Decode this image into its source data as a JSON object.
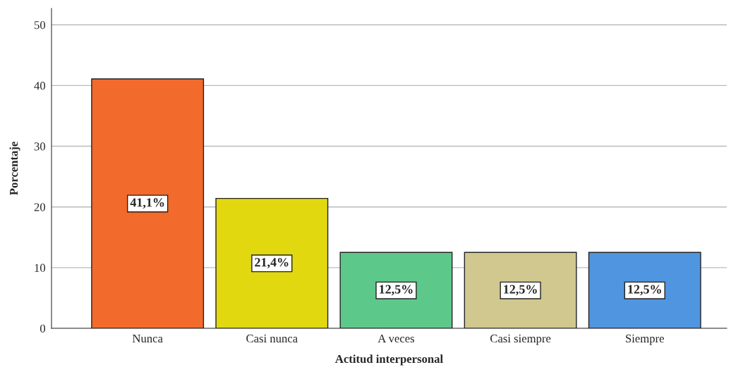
{
  "chart_data": {
    "type": "bar",
    "xlabel": "Actitud interpersonal",
    "ylabel": "Porcentaje",
    "categories": [
      "Nunca",
      "Casi nunca",
      "A veces",
      "Casi siempre",
      "Siempre"
    ],
    "values": [
      41.1,
      21.4,
      12.5,
      12.5,
      12.5
    ],
    "value_labels": [
      "41,1%",
      "21,4%",
      "12,5%",
      "12,5%",
      "12,5%"
    ],
    "colors": [
      "#f26a2c",
      "#e2d80f",
      "#5cc98a",
      "#d0c88f",
      "#5095e0"
    ],
    "ylim": [
      0,
      52.7
    ],
    "yticks": [
      0,
      10,
      20,
      30,
      40,
      50
    ],
    "grid": "y"
  }
}
